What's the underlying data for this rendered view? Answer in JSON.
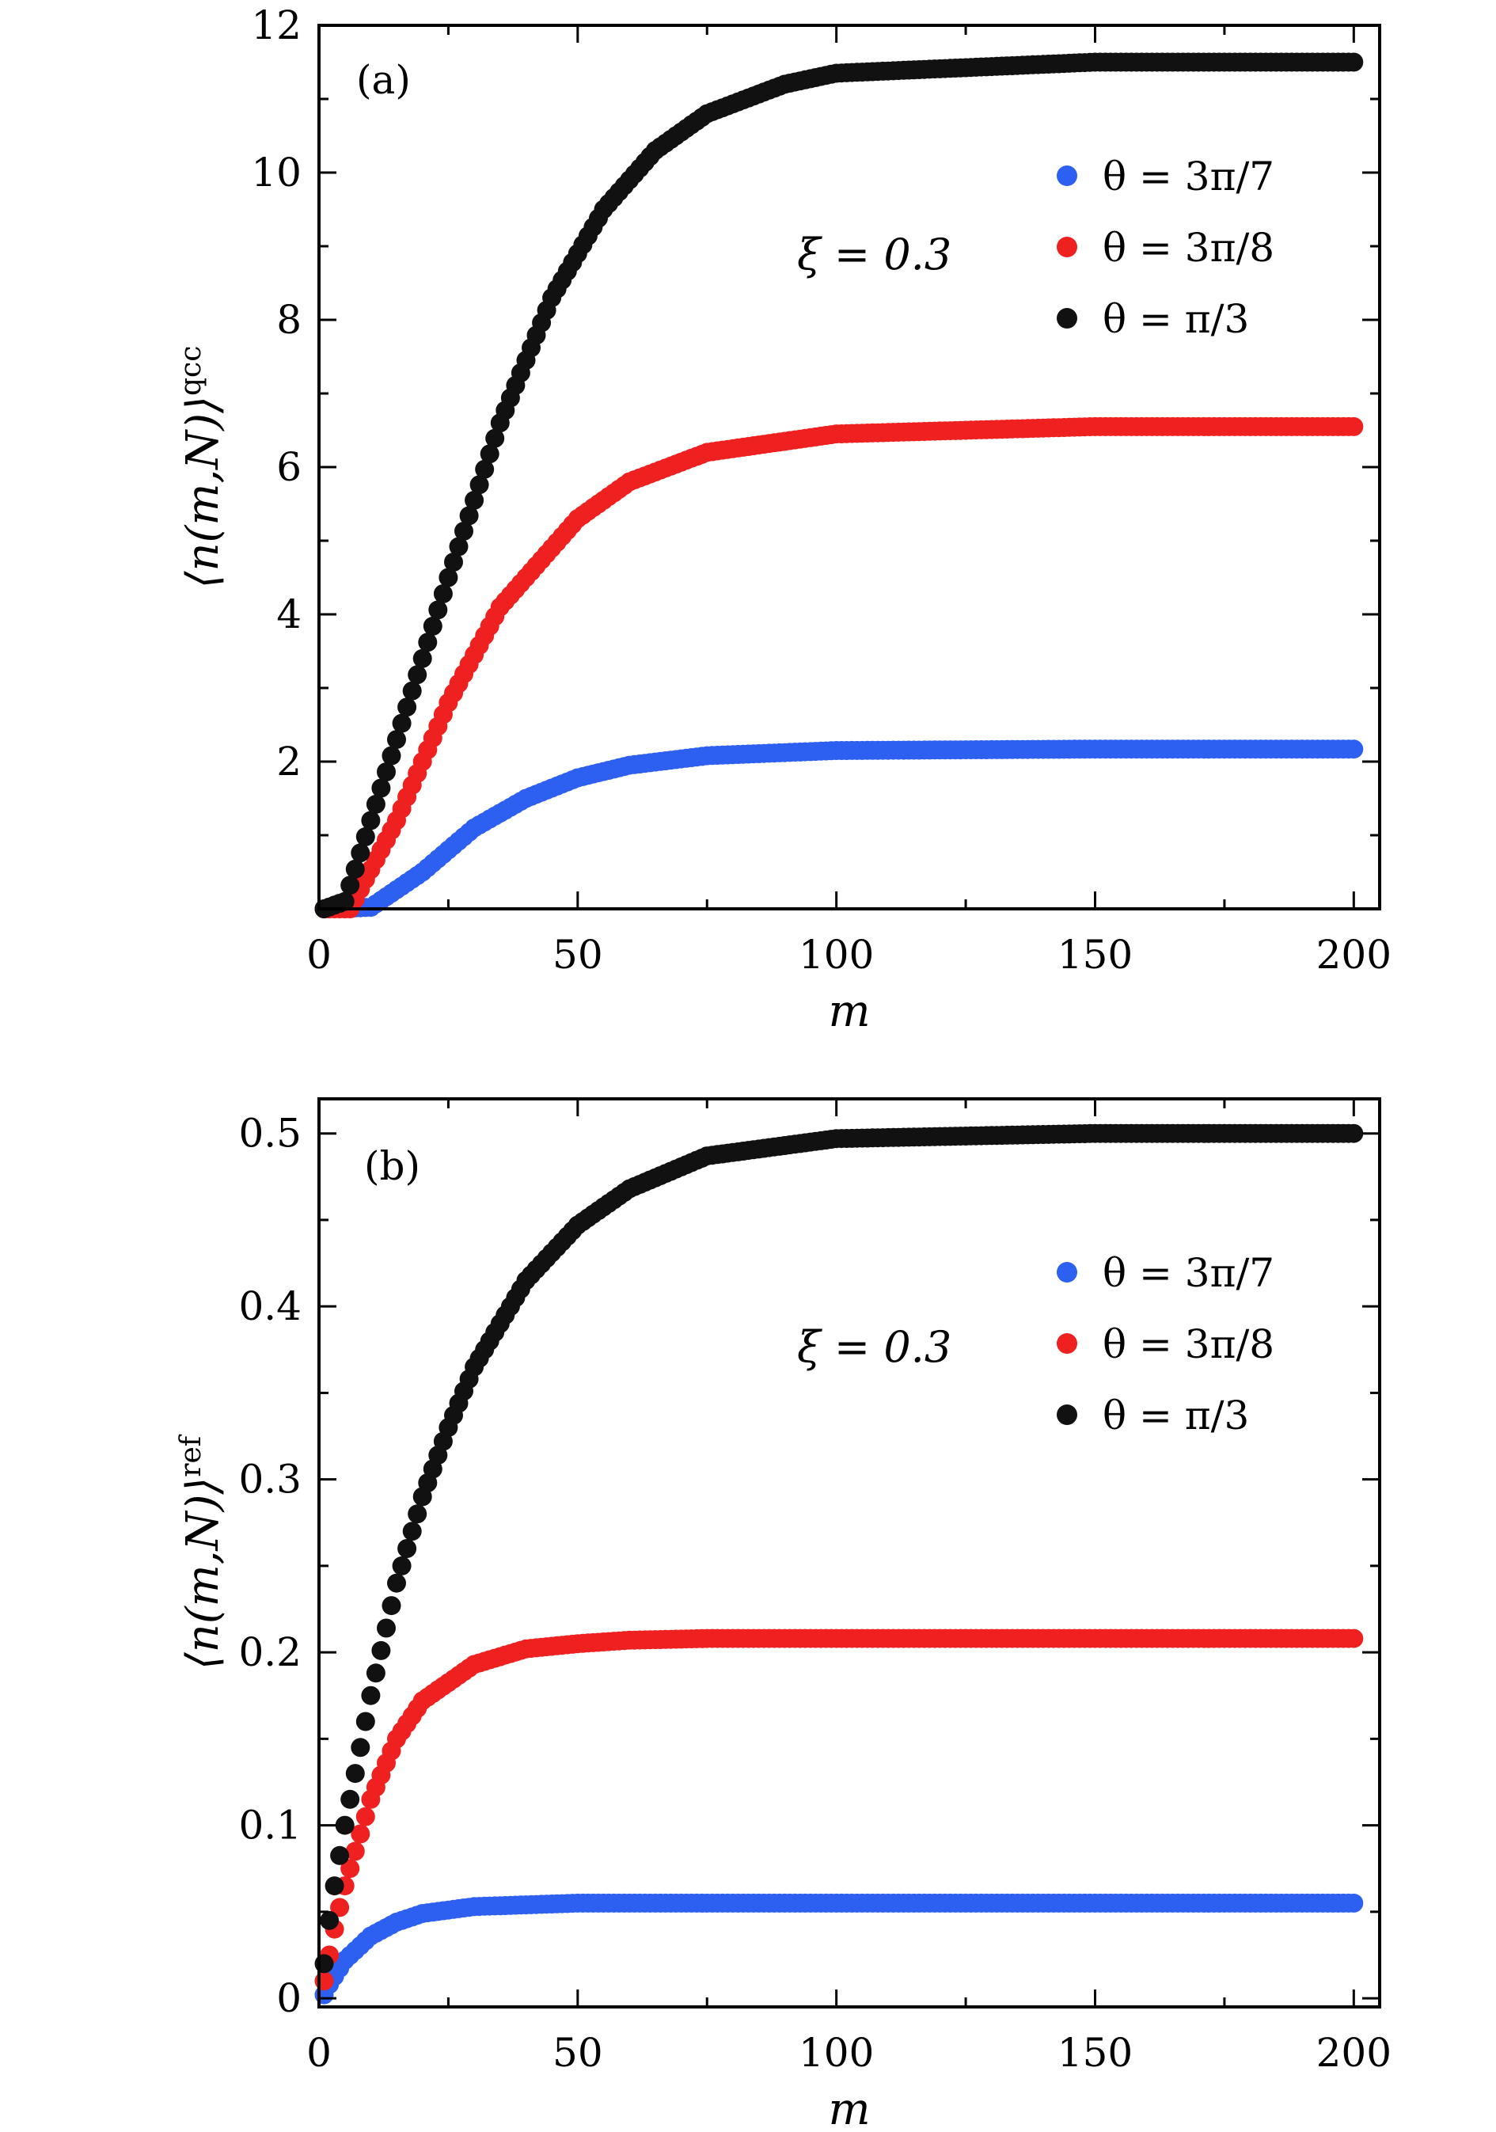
{
  "figure": {
    "colors": {
      "blue": "#2d5ff0",
      "red": "#ef2020",
      "black": "#111111"
    },
    "marker": "circle"
  },
  "chart_data": [
    {
      "type": "scatter",
      "panel_label": "(a)",
      "ylabel": "⟨n(m,N)⟩",
      "ylabel_sup": "qcc",
      "xlabel": "m",
      "xlim": [
        0,
        205
      ],
      "ylim": [
        0,
        12
      ],
      "xticks": [
        0,
        50,
        100,
        150,
        200
      ],
      "xtick_labels": [
        "0",
        "50",
        "100",
        "150",
        "200"
      ],
      "yticks": [
        2,
        4,
        6,
        8,
        10,
        12
      ],
      "ytick_labels": [
        "2",
        "4",
        "6",
        "8",
        "10",
        "12"
      ],
      "annotation": "ξ = 0.3",
      "legend_position": "top-right",
      "x_range": [
        1,
        200
      ],
      "series": [
        {
          "name": "θ = 3π/7",
          "color": "#2d5ff0",
          "x": [
            1,
            10,
            20,
            30,
            40,
            50,
            60,
            75,
            100,
            150,
            200
          ],
          "values": [
            0.0,
            0.02,
            0.5,
            1.1,
            1.5,
            1.78,
            1.95,
            2.08,
            2.15,
            2.17,
            2.17
          ]
        },
        {
          "name": "θ = 3π/8",
          "color": "#ef2020",
          "x": [
            1,
            6,
            15,
            25,
            35,
            50,
            60,
            75,
            100,
            150,
            200
          ],
          "values": [
            0.0,
            0.0,
            1.2,
            2.8,
            4.1,
            5.3,
            5.8,
            6.2,
            6.45,
            6.55,
            6.55
          ]
        },
        {
          "name": "θ = π/3",
          "color": "#111111",
          "x": [
            1,
            5,
            15,
            25,
            35,
            45,
            55,
            65,
            75,
            90,
            100,
            150,
            200
          ],
          "values": [
            0.0,
            0.1,
            2.3,
            4.5,
            6.6,
            8.3,
            9.5,
            10.3,
            10.8,
            11.2,
            11.35,
            11.5,
            11.5
          ]
        }
      ]
    },
    {
      "type": "scatter",
      "panel_label": "(b)",
      "ylabel": "⟨n(m,N)⟩",
      "ylabel_sup": "ref",
      "xlabel": "m",
      "xlim": [
        0,
        205
      ],
      "ylim": [
        -0.005,
        0.52
      ],
      "xticks": [
        0,
        50,
        100,
        150,
        200
      ],
      "xtick_labels": [
        "0",
        "50",
        "100",
        "150",
        "200"
      ],
      "yticks": [
        0,
        0.1,
        0.2,
        0.3,
        0.4,
        0.5
      ],
      "ytick_labels": [
        "0",
        "0.1",
        "0.2",
        "0.3",
        "0.4",
        "0.5"
      ],
      "annotation": "ξ = 0.3",
      "legend_position": "top-right",
      "x_range": [
        1,
        200
      ],
      "series": [
        {
          "name": "θ = 3π/7",
          "color": "#2d5ff0",
          "x": [
            1,
            2,
            5,
            10,
            15,
            20,
            30,
            40,
            50,
            100,
            200
          ],
          "values": [
            0.002,
            0.008,
            0.022,
            0.036,
            0.044,
            0.049,
            0.053,
            0.054,
            0.055,
            0.055,
            0.055
          ]
        },
        {
          "name": "θ = 3π/8",
          "color": "#ef2020",
          "x": [
            1,
            3,
            5,
            10,
            15,
            20,
            30,
            40,
            50,
            60,
            75,
            100,
            200
          ],
          "values": [
            0.01,
            0.04,
            0.065,
            0.115,
            0.15,
            0.172,
            0.193,
            0.202,
            0.205,
            0.207,
            0.208,
            0.208,
            0.208
          ]
        },
        {
          "name": "θ = π/3",
          "color": "#111111",
          "x": [
            1,
            2,
            3,
            5,
            10,
            15,
            20,
            25,
            30,
            40,
            50,
            60,
            75,
            100,
            150,
            200
          ],
          "values": [
            0.02,
            0.045,
            0.065,
            0.1,
            0.175,
            0.24,
            0.29,
            0.33,
            0.365,
            0.415,
            0.447,
            0.468,
            0.487,
            0.497,
            0.5,
            0.5
          ]
        }
      ]
    }
  ]
}
